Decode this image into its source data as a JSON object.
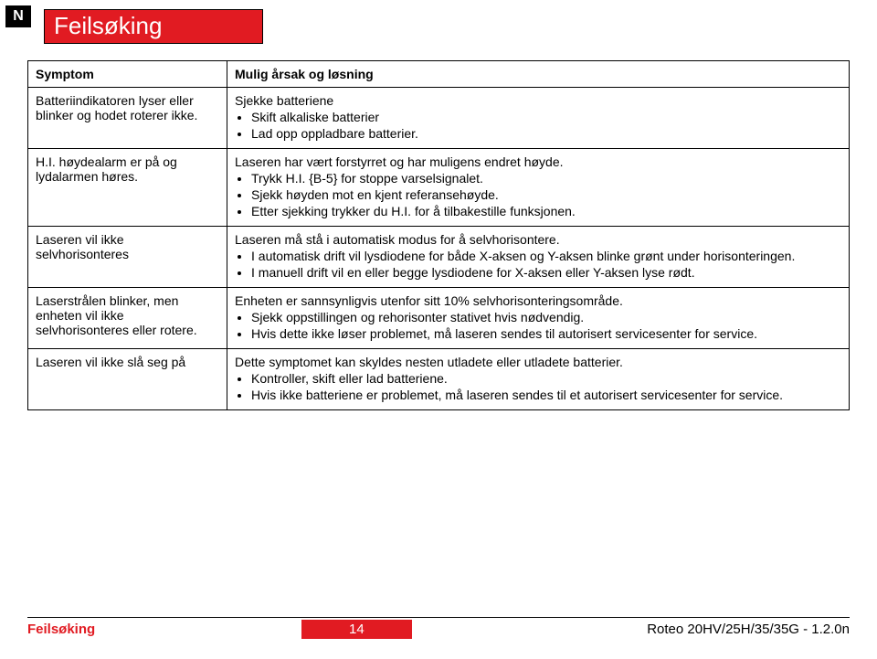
{
  "badge": "N",
  "title": "Feilsøking",
  "colors": {
    "accent": "#e11b22",
    "text": "#000000",
    "bg": "#ffffff",
    "badge_bg": "#000000",
    "badge_fg": "#ffffff",
    "border": "#000000"
  },
  "table": {
    "headers": {
      "symptom": "Symptom",
      "solution": "Mulig årsak og løsning"
    },
    "rows": [
      {
        "symptom": "Batteriindikatoren lyser eller blinker og hodet roterer ikke.",
        "intro": "Sjekke batteriene",
        "bullets": [
          "Skift alkaliske batterier",
          "Lad opp oppladbare batterier."
        ]
      },
      {
        "symptom": "H.I. høydealarm er på og lydalarmen høres.",
        "intro": "Laseren har vært forstyrret og har muligens endret høyde.",
        "bullets": [
          "Trykk H.I. {B-5} for  stoppe varselsignalet.",
          "Sjekk høyden mot en kjent referansehøyde.",
          "Etter sjekking trykker du H.I. for å tilbakestille funksjonen."
        ]
      },
      {
        "symptom": "Laseren vil ikke selvhorisonteres",
        "intro": "Laseren må stå i automatisk modus for å selvhorisontere.",
        "bullets": [
          "I automatisk drift vil lysdiodene for både X-aksen og Y-aksen blinke grønt under horisonteringen.",
          "I manuell drift vil en eller begge lysdiodene for X-aksen eller Y-aksen lyse rødt."
        ]
      },
      {
        "symptom": "Laserstrålen blinker, men enheten vil ikke selvhorisonteres eller rotere.",
        "intro": "Enheten er sannsynligvis utenfor sitt 10% selvhorisonteringsområde.",
        "bullets": [
          "Sjekk oppstillingen og rehorisonter stativet hvis nødvendig.",
          "Hvis dette ikke løser problemet, må laseren sendes til autorisert servicesenter for service."
        ]
      },
      {
        "symptom": "Laseren vil ikke slå seg på",
        "intro": "Dette symptomet kan skyldes nesten utladete eller utladete batterier.",
        "bullets": [
          "Kontroller, skift eller lad batteriene.",
          "Hvis ikke batteriene er problemet, må laseren sendes til et autorisert servicesenter for service."
        ]
      }
    ]
  },
  "footer": {
    "left": "Feilsøking",
    "page": "14",
    "right": "Roteo 20HV/25H/35/35G - 1.2.0n"
  }
}
